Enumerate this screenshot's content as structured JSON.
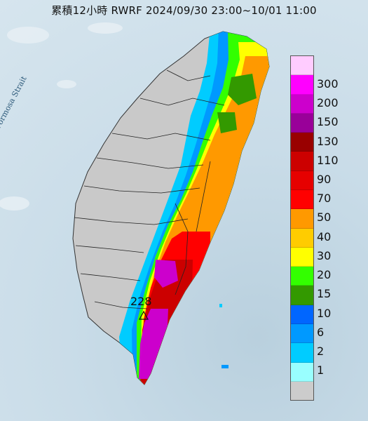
{
  "header": {
    "title": "累積12小時 RWRF 2024/09/30 23:00~10/01 11:00"
  },
  "map": {
    "strait_label": "Formosa Strait",
    "max_value_label": "228",
    "marker_icon": "max-triangle-icon",
    "land_color": "#c9c9c9",
    "sea_color": "#cfe0ea"
  },
  "legend": {
    "colors": [
      "#ffccff",
      "#ff00ff",
      "#cc00cc",
      "#990099",
      "#990000",
      "#cc0000",
      "#e60000",
      "#ff0000",
      "#ff9900",
      "#ffcc00",
      "#ffff00",
      "#33ff00",
      "#339900",
      "#0066ff",
      "#0099ff",
      "#00ccff",
      "#99ffff",
      "#cccccc"
    ],
    "labels": [
      "300",
      "200",
      "150",
      "130",
      "110",
      "90",
      "70",
      "50",
      "40",
      "30",
      "20",
      "15",
      "10",
      "6",
      "2",
      "1"
    ]
  }
}
